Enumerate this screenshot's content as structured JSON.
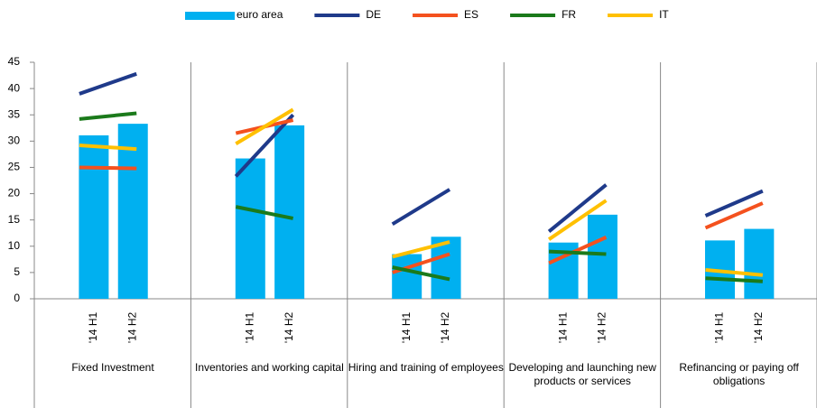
{
  "chart_data": {
    "type": "bar-line",
    "groups": [
      "Fixed Investment",
      "Inventories and working capital",
      "Hiring and training of employees",
      "Developing and launching new products or services",
      "Refinancing or paying off obligations"
    ],
    "categories": [
      "'14 H1",
      "'14 H2",
      "'14 H1",
      "'14 H2",
      "'14 H1",
      "'14 H2",
      "'14 H1",
      "'14 H2",
      "'14 H1",
      "'14 H2"
    ],
    "series": [
      {
        "name": "euro area",
        "type": "bar",
        "color": "#00b0f0",
        "values": [
          31.1,
          33.3,
          26.7,
          33.0,
          8.5,
          11.8,
          10.7,
          16.0,
          11.1,
          13.3
        ]
      },
      {
        "name": "DE",
        "type": "line",
        "color": "#1f3a8a",
        "values": [
          39.0,
          42.8,
          23.3,
          35.0,
          14.2,
          20.8,
          12.8,
          21.7,
          15.8,
          20.5
        ]
      },
      {
        "name": "ES",
        "type": "line",
        "color": "#f4511e",
        "values": [
          25.0,
          24.8,
          31.5,
          34.0,
          5.0,
          8.5,
          6.8,
          11.7,
          13.5,
          18.2
        ]
      },
      {
        "name": "FR",
        "type": "line",
        "color": "#1b7a1b",
        "values": [
          34.2,
          35.3,
          17.5,
          15.3,
          6.0,
          3.7,
          9.0,
          8.5,
          3.9,
          3.3
        ]
      },
      {
        "name": "IT",
        "type": "line",
        "color": "#ffc000",
        "values": [
          29.2,
          28.5,
          29.5,
          36.0,
          8.0,
          10.8,
          11.3,
          18.7,
          5.5,
          4.5
        ]
      }
    ],
    "ylim": [
      0,
      45
    ],
    "yticks": [
      0,
      5,
      10,
      15,
      20,
      25,
      30,
      35,
      40,
      45
    ]
  }
}
